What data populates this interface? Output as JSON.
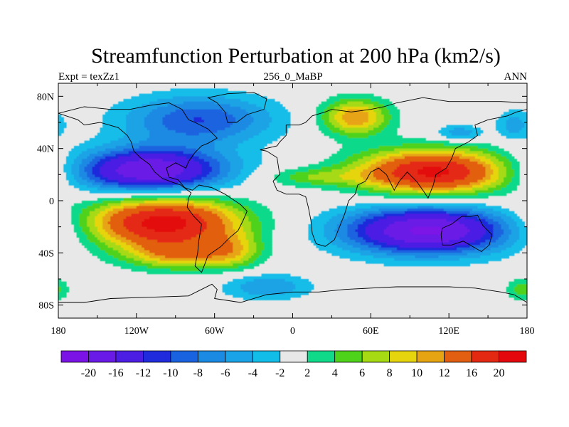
{
  "title": "Streamfunction Perturbation at 200 hPa (km2/s)",
  "left_string": "Expt = texZz1",
  "center_string": "256_0_MaBP",
  "right_string": "ANN",
  "background_color": "#e8e8e8",
  "map": {
    "projection": "cylindrical-equidistant",
    "lon_range": [
      -180,
      180
    ],
    "lat_range": [
      -90,
      90
    ],
    "lon_ticks": [
      {
        "value": -180,
        "label": "180"
      },
      {
        "value": -120,
        "label": "120W"
      },
      {
        "value": -60,
        "label": "60W"
      },
      {
        "value": 0,
        "label": "0"
      },
      {
        "value": 60,
        "label": "60E"
      },
      {
        "value": 120,
        "label": "120E"
      },
      {
        "value": 180,
        "label": "180"
      }
    ],
    "lat_ticks": [
      {
        "value": 80,
        "label": "80N"
      },
      {
        "value": 40,
        "label": "40N"
      },
      {
        "value": 0,
        "label": "0"
      },
      {
        "value": -40,
        "label": "40S"
      },
      {
        "value": -80,
        "label": "80S"
      }
    ],
    "features": [
      {
        "name": "neg-north-pacific",
        "lon": -72,
        "lat": 62,
        "rlon": 58,
        "rlat": 19,
        "peak": -10
      },
      {
        "name": "neg-tropical-north-pacific",
        "lon": -110,
        "lat": 23,
        "rlon": 58,
        "rlat": 17,
        "peak": -20
      },
      {
        "name": "pos-tropical-south-pacific",
        "lon": -99,
        "lat": -17,
        "rlon": 57,
        "rlat": 20,
        "peak": 22
      },
      {
        "name": "pos-south-pacific-arm",
        "lon": -85,
        "lat": -42,
        "rlon": 40,
        "rlat": 11,
        "peak": 9
      },
      {
        "name": "pos-south-atlantic-arm",
        "lon": -45,
        "lat": -38,
        "rlon": 22,
        "rlat": 14,
        "peak": 6
      },
      {
        "name": "neg-southern-ocean",
        "lon": -20,
        "lat": -66,
        "rlon": 34,
        "rlat": 10,
        "peak": -6
      },
      {
        "name": "pos-europe",
        "lon": 48,
        "lat": 64,
        "rlon": 26,
        "rlat": 14,
        "peak": 12
      },
      {
        "name": "pos-eurasia",
        "lon": 108,
        "lat": 22,
        "rlon": 58,
        "rlat": 17,
        "peak": 21
      },
      {
        "name": "pos-atlantic-band",
        "lon": 15,
        "lat": 18,
        "rlon": 40,
        "rlat": 7,
        "peak": 5
      },
      {
        "name": "neg-indian-ocean",
        "lon": 103,
        "lat": -23,
        "rlon": 63,
        "rlat": 18,
        "peak": -21
      },
      {
        "name": "neg-east-asia",
        "lon": 128,
        "lat": 52,
        "rlon": 18,
        "rlat": 6,
        "peak": -6
      },
      {
        "name": "neg-west-pacific-north",
        "lon": 170,
        "lat": 58,
        "rlon": 14,
        "rlat": 12,
        "peak": -5
      },
      {
        "name": "pos-far-south-pacific",
        "lon": 176,
        "lat": -68,
        "rlon": 12,
        "rlat": 9,
        "peak": 5
      }
    ],
    "continent_outlines": [
      {
        "name": "eurasia-africa",
        "points": [
          [
            -25,
            39
          ],
          [
            -20,
            38
          ],
          [
            -12,
            33
          ],
          [
            -10,
            20
          ],
          [
            -15,
            15
          ],
          [
            -12,
            8
          ],
          [
            -5,
            5
          ],
          [
            5,
            5
          ],
          [
            10,
            3
          ],
          [
            12,
            -5
          ],
          [
            14,
            -15
          ],
          [
            15,
            -25
          ],
          [
            18,
            -33
          ],
          [
            25,
            -35
          ],
          [
            32,
            -30
          ],
          [
            36,
            -20
          ],
          [
            40,
            -10
          ],
          [
            43,
            0
          ],
          [
            48,
            5
          ],
          [
            50,
            12
          ],
          [
            56,
            15
          ],
          [
            60,
            22
          ],
          [
            66,
            25
          ],
          [
            72,
            20
          ],
          [
            78,
            8
          ],
          [
            82,
            15
          ],
          [
            88,
            22
          ],
          [
            95,
            15
          ],
          [
            100,
            8
          ],
          [
            104,
            2
          ],
          [
            108,
            12
          ],
          [
            110,
            20
          ],
          [
            118,
            25
          ],
          [
            122,
            32
          ],
          [
            125,
            40
          ],
          [
            135,
            45
          ],
          [
            142,
            50
          ],
          [
            140,
            58
          ],
          [
            150,
            62
          ],
          [
            165,
            65
          ],
          [
            172,
            68
          ],
          [
            180,
            70
          ],
          [
            180,
            75
          ],
          [
            160,
            76
          ],
          [
            140,
            76
          ],
          [
            120,
            76
          ],
          [
            100,
            79
          ],
          [
            80,
            75
          ],
          [
            70,
            72
          ],
          [
            60,
            70
          ],
          [
            45,
            68
          ],
          [
            30,
            70
          ],
          [
            25,
            68
          ],
          [
            15,
            65
          ],
          [
            10,
            60
          ],
          [
            5,
            58
          ],
          [
            -5,
            58
          ],
          [
            -5,
            50
          ],
          [
            -10,
            45
          ],
          [
            -12,
            42
          ],
          [
            -25,
            39
          ]
        ]
      },
      {
        "name": "americas",
        "points": [
          [
            -180,
            67
          ],
          [
            -168,
            70
          ],
          [
            -160,
            72
          ],
          [
            -140,
            70
          ],
          [
            -125,
            70
          ],
          [
            -110,
            73
          ],
          [
            -95,
            75
          ],
          [
            -85,
            70
          ],
          [
            -80,
            62
          ],
          [
            -75,
            60
          ],
          [
            -65,
            55
          ],
          [
            -58,
            48
          ],
          [
            -65,
            44
          ],
          [
            -70,
            42
          ],
          [
            -75,
            37
          ],
          [
            -80,
            30
          ],
          [
            -82,
            25
          ],
          [
            -90,
            29
          ],
          [
            -97,
            25
          ],
          [
            -95,
            18
          ],
          [
            -88,
            16
          ],
          [
            -83,
            10
          ],
          [
            -77,
            8
          ],
          [
            -72,
            12
          ],
          [
            -62,
            10
          ],
          [
            -52,
            5
          ],
          [
            -40,
            -3
          ],
          [
            -35,
            -8
          ],
          [
            -38,
            -15
          ],
          [
            -42,
            -23
          ],
          [
            -48,
            -28
          ],
          [
            -55,
            -35
          ],
          [
            -65,
            -42
          ],
          [
            -68,
            -50
          ],
          [
            -70,
            -55
          ],
          [
            -75,
            -50
          ],
          [
            -73,
            -40
          ],
          [
            -72,
            -30
          ],
          [
            -70,
            -18
          ],
          [
            -76,
            -12
          ],
          [
            -81,
            -5
          ],
          [
            -80,
            2
          ],
          [
            -78,
            6
          ],
          [
            -86,
            12
          ],
          [
            -92,
            14
          ],
          [
            -100,
            17
          ],
          [
            -106,
            22
          ],
          [
            -110,
            28
          ],
          [
            -117,
            33
          ],
          [
            -122,
            38
          ],
          [
            -124,
            45
          ],
          [
            -127,
            50
          ],
          [
            -134,
            56
          ],
          [
            -148,
            60
          ],
          [
            -160,
            58
          ],
          [
            -165,
            62
          ],
          [
            -180,
            67
          ]
        ]
      },
      {
        "name": "greenland",
        "points": [
          [
            -50,
            60
          ],
          [
            -43,
            60
          ],
          [
            -35,
            66
          ],
          [
            -22,
            70
          ],
          [
            -20,
            78
          ],
          [
            -30,
            83
          ],
          [
            -50,
            82
          ],
          [
            -65,
            79
          ],
          [
            -58,
            75
          ],
          [
            -52,
            68
          ],
          [
            -50,
            60
          ]
        ]
      },
      {
        "name": "australia",
        "points": [
          [
            115,
            -21
          ],
          [
            122,
            -18
          ],
          [
            130,
            -12
          ],
          [
            137,
            -12
          ],
          [
            142,
            -11
          ],
          [
            146,
            -19
          ],
          [
            153,
            -26
          ],
          [
            151,
            -34
          ],
          [
            145,
            -39
          ],
          [
            138,
            -35
          ],
          [
            131,
            -31
          ],
          [
            122,
            -34
          ],
          [
            115,
            -34
          ],
          [
            114,
            -26
          ],
          [
            115,
            -21
          ]
        ]
      },
      {
        "name": "antarctica",
        "points": [
          [
            -180,
            -78
          ],
          [
            -160,
            -78
          ],
          [
            -140,
            -75
          ],
          [
            -110,
            -74
          ],
          [
            -80,
            -73
          ],
          [
            -62,
            -64
          ],
          [
            -58,
            -68
          ],
          [
            -60,
            -75
          ],
          [
            -40,
            -78
          ],
          [
            -20,
            -72
          ],
          [
            0,
            -70
          ],
          [
            20,
            -70
          ],
          [
            40,
            -68
          ],
          [
            60,
            -67
          ],
          [
            80,
            -66
          ],
          [
            100,
            -66
          ],
          [
            120,
            -66
          ],
          [
            140,
            -67
          ],
          [
            160,
            -70
          ],
          [
            170,
            -72
          ],
          [
            180,
            -78
          ],
          [
            180,
            -90
          ],
          [
            -180,
            -90
          ],
          [
            -180,
            -78
          ]
        ]
      }
    ]
  },
  "colorbar": {
    "levels": [
      "-20",
      "-16",
      "-12",
      "-10",
      "-8",
      "-6",
      "-4",
      "-2",
      "2",
      "4",
      "6",
      "8",
      "10",
      "12",
      "16",
      "20"
    ],
    "level_values": [
      -20,
      -16,
      -12,
      -10,
      -8,
      -6,
      -4,
      -2,
      2,
      4,
      6,
      8,
      10,
      12,
      16,
      20
    ],
    "colors": [
      "#7b13e6",
      "#6a1ae6",
      "#4c1de3",
      "#1f2bdc",
      "#1a63e0",
      "#1b8ae3",
      "#1aa3e6",
      "#12bde8",
      "#e8e8e8",
      "#10d98a",
      "#4fd21a",
      "#a6da12",
      "#e6d50e",
      "#e6a412",
      "#e25e10",
      "#e42913",
      "#e4080d"
    ]
  }
}
